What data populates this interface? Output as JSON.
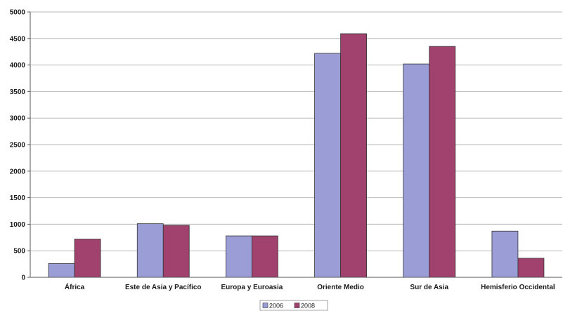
{
  "chart_data": {
    "type": "bar",
    "title": "",
    "xlabel": "",
    "ylabel": "",
    "categories": [
      "África",
      "Este de Asia y Pacífico",
      "Europa y Euroasia",
      "Oriente Medio",
      "Sur de Asia",
      "Hemisferio Occidental"
    ],
    "series": [
      {
        "name": "2006",
        "color": "#9a9dd6",
        "values": [
          260,
          1010,
          780,
          4220,
          4020,
          870
        ]
      },
      {
        "name": "2008",
        "color": "#a0416e",
        "values": [
          720,
          980,
          780,
          4590,
          4350,
          360
        ]
      }
    ],
    "ylim": [
      0,
      5000
    ],
    "yticks": [
      0,
      500,
      1000,
      1500,
      2000,
      2500,
      3000,
      3500,
      4000,
      4500,
      5000
    ],
    "grid": true,
    "legend_position": "bottom"
  }
}
